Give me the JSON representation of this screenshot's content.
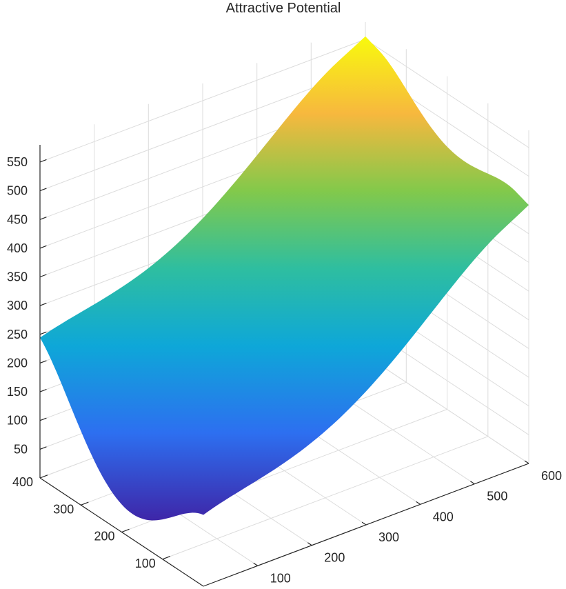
{
  "chart_data": {
    "type": "surface",
    "title": "Attractive Potential",
    "xlabel": "",
    "ylabel": "",
    "zlabel": "",
    "xlim": [
      0,
      600
    ],
    "ylim": [
      0,
      400
    ],
    "zlim": [
      0,
      580
    ],
    "x_ticks": [
      100,
      200,
      300,
      400,
      500,
      600
    ],
    "y_ticks": [
      100,
      200,
      300,
      400
    ],
    "z_ticks": [
      50,
      100,
      150,
      200,
      250,
      300,
      350,
      400,
      450,
      500,
      550
    ],
    "x_tick_labels": [
      "100",
      "200",
      "300",
      "400",
      "500",
      "600"
    ],
    "y_tick_labels": [
      "100",
      "200",
      "300",
      "400"
    ],
    "z_tick_labels": [
      "50",
      "100",
      "150",
      "200",
      "250",
      "300",
      "350",
      "400",
      "450",
      "500",
      "550"
    ],
    "grid": true,
    "colormap": "parula",
    "surface_corner_values": [
      {
        "x": 0,
        "y": 0,
        "z": 130
      },
      {
        "x": 600,
        "y": 0,
        "z": 450
      },
      {
        "x": 0,
        "y": 400,
        "z": 250
      },
      {
        "x": 600,
        "y": 400,
        "z": 555
      }
    ],
    "surface_minimum": {
      "x": 250,
      "y": 200,
      "z": 20
    }
  }
}
